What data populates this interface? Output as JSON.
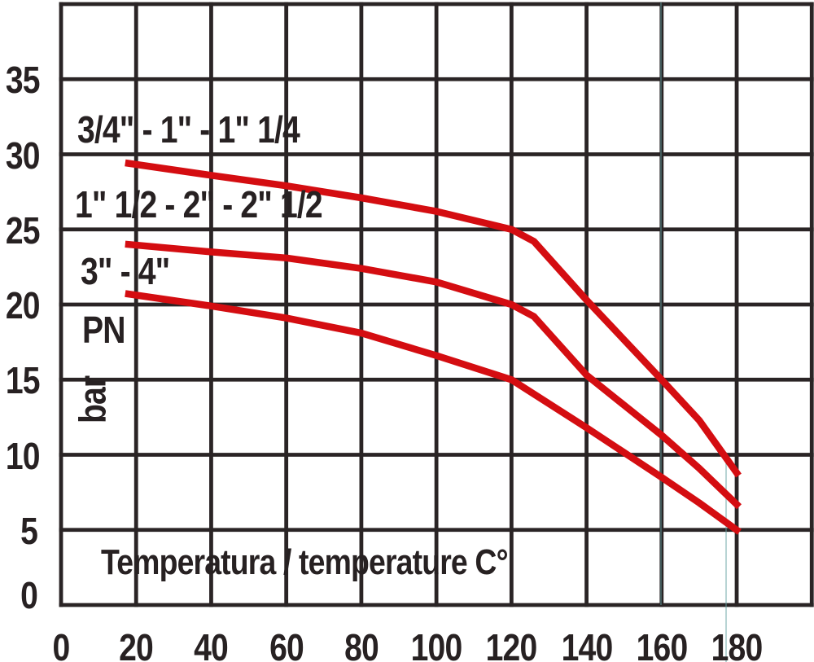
{
  "page": {
    "background": "#ffffff",
    "grid_color": "#2a2425",
    "text_color": "#272122",
    "accent_red": "#d40d11",
    "artifact_teal": "#63a0a0"
  },
  "chart_data": {
    "type": "line",
    "title": "",
    "xlabel": "Temperatura / temperature C°",
    "ylabel_pn": "PN",
    "ylabel_bar": "bar",
    "x_ticks": [
      0,
      20,
      40,
      60,
      80,
      100,
      120,
      140,
      160,
      180
    ],
    "y_ticks": [
      0,
      5,
      10,
      15,
      20,
      25,
      30,
      35
    ],
    "x_grid_range": [
      0,
      200
    ],
    "y_grid_range": [
      0,
      40
    ],
    "x_grid_step": 20,
    "y_grid_step": 5,
    "grid": "on",
    "legend_position": "labels-inside-top-left",
    "series": [
      {
        "name": "small-sizes",
        "label": "3/4\" - 1\" - 1\" 1/4",
        "color": "#d40d11",
        "points": [
          [
            18,
            29.4
          ],
          [
            40,
            28.6
          ],
          [
            60,
            27.9
          ],
          [
            80,
            27.1
          ],
          [
            100,
            26.2
          ],
          [
            120,
            25.0
          ],
          [
            126,
            24.2
          ],
          [
            140,
            20.3
          ],
          [
            160,
            15.0
          ],
          [
            170,
            12.3
          ],
          [
            180,
            8.8
          ]
        ]
      },
      {
        "name": "medium-sizes",
        "label": "1\" 1/2 - 2\" - 2\" 1/2",
        "color": "#d40d11",
        "points": [
          [
            18,
            24.0
          ],
          [
            40,
            23.5
          ],
          [
            60,
            23.1
          ],
          [
            80,
            22.4
          ],
          [
            100,
            21.5
          ],
          [
            120,
            20.0
          ],
          [
            126,
            19.2
          ],
          [
            140,
            15.3
          ],
          [
            160,
            11.3
          ],
          [
            170,
            9.1
          ],
          [
            180,
            6.7
          ]
        ]
      },
      {
        "name": "large-sizes",
        "label": "3\" - 4\"",
        "color": "#d40d11",
        "points": [
          [
            18,
            20.7
          ],
          [
            40,
            19.9
          ],
          [
            60,
            19.1
          ],
          [
            80,
            18.1
          ],
          [
            100,
            16.6
          ],
          [
            120,
            15.0
          ],
          [
            140,
            11.8
          ],
          [
            160,
            8.5
          ],
          [
            170,
            6.8
          ],
          [
            180,
            5.0
          ]
        ]
      }
    ],
    "artifact_lines": [
      {
        "x": 812,
        "y1": 3,
        "y2": 743
      },
      {
        "x": 892,
        "y1": 555,
        "y2": 813
      }
    ]
  }
}
